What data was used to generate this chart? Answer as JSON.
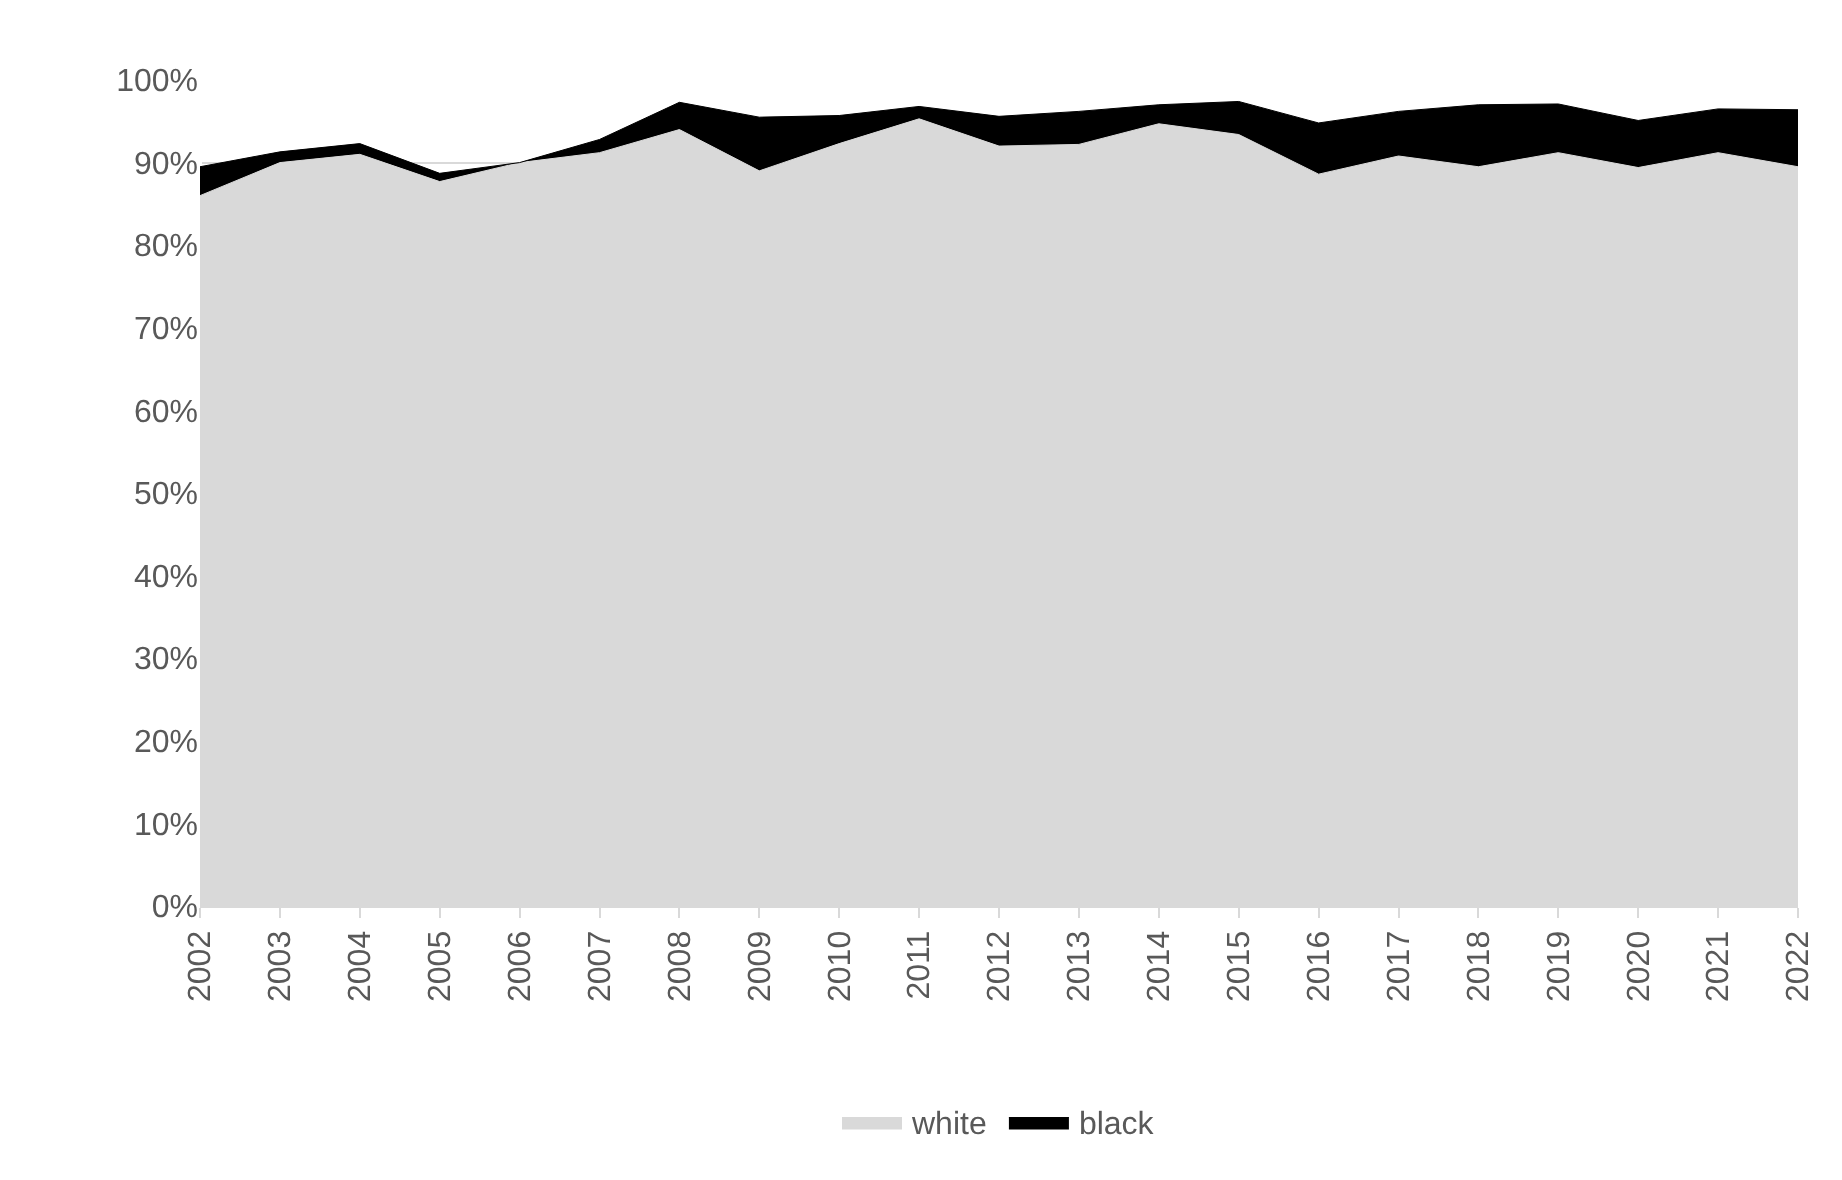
{
  "chart_data": {
    "type": "area",
    "stacked": true,
    "categories": [
      "2002",
      "2003",
      "2004",
      "2005",
      "2006",
      "2007",
      "2008",
      "2009",
      "2010",
      "2011",
      "2012",
      "2013",
      "2014",
      "2015",
      "2016",
      "2017",
      "2018",
      "2019",
      "2020",
      "2021",
      "2022"
    ],
    "series": [
      {
        "name": "white",
        "color": "#d9d9d9",
        "values": [
          86,
          90,
          91,
          87.7,
          90,
          91.2,
          94,
          89,
          92.3,
          95.3,
          92,
          92.2,
          94.7,
          93.4,
          88.6,
          90.8,
          89.5,
          91.2,
          89.4,
          91.2,
          89.5
        ]
      },
      {
        "name": "black",
        "color": "#000000",
        "values": [
          3.5,
          1.3,
          1.3,
          1.0,
          0,
          1.6,
          3.3,
          6.5,
          3.4,
          1.5,
          3.6,
          4.0,
          2.3,
          4.0,
          6.2,
          5.4,
          7.5,
          5.9,
          5.7,
          5.3,
          6.9
        ]
      }
    ],
    "ylim": [
      0,
      100
    ],
    "yticks": [
      {
        "value": 0,
        "label": "0%"
      },
      {
        "value": 10,
        "label": "10%"
      },
      {
        "value": 20,
        "label": "20%"
      },
      {
        "value": 30,
        "label": "30%"
      },
      {
        "value": 40,
        "label": "40%"
      },
      {
        "value": 50,
        "label": "50%"
      },
      {
        "value": 60,
        "label": "60%"
      },
      {
        "value": 70,
        "label": "70%"
      },
      {
        "value": 80,
        "label": "80%"
      },
      {
        "value": 90,
        "label": "90%"
      },
      {
        "value": 100,
        "label": "100%"
      }
    ],
    "grid": "y",
    "legend": "bottom"
  }
}
